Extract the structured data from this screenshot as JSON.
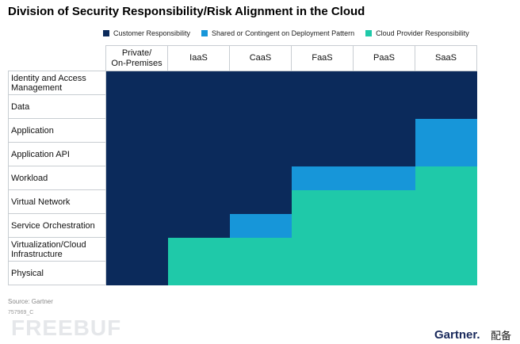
{
  "chart_data": {
    "type": "heatmap",
    "title": "Division of Security Responsibility/Risk Alignment in the Cloud",
    "legend": [
      {
        "key": "C",
        "label": "Customer Responsibility",
        "color": "#0b2a5b"
      },
      {
        "key": "S",
        "label": "Shared or Contingent on Deployment Pattern",
        "color": "#1796d9"
      },
      {
        "key": "P",
        "label": "Cloud Provider Responsibility",
        "color": "#1fc9a9"
      }
    ],
    "legend_placement": "top",
    "columns": [
      "Private/ On-Premises",
      "IaaS",
      "CaaS",
      "FaaS",
      "PaaS",
      "SaaS"
    ],
    "rows": [
      {
        "label": "Identity and Access Management",
        "cells": [
          "C",
          "C",
          "C",
          "C",
          "C",
          "C"
        ]
      },
      {
        "label": "Data",
        "cells": [
          "C",
          "C",
          "C",
          "C",
          "C",
          "C"
        ]
      },
      {
        "label": "Application",
        "cells": [
          "C",
          "C",
          "C",
          "C",
          "C",
          "S"
        ]
      },
      {
        "label": "Application API",
        "cells": [
          "C",
          "C",
          "C",
          "C",
          "C",
          "S"
        ]
      },
      {
        "label": "Workload",
        "cells": [
          "C",
          "C",
          "C",
          "S",
          "S",
          "P"
        ]
      },
      {
        "label": "Virtual Network",
        "cells": [
          "C",
          "C",
          "C",
          "P",
          "P",
          "P"
        ]
      },
      {
        "label": "Service Orchestration",
        "cells": [
          "C",
          "C",
          "S",
          "P",
          "P",
          "P"
        ]
      },
      {
        "label": "Virtualization/Cloud Infrastructure",
        "cells": [
          "C",
          "P",
          "P",
          "P",
          "P",
          "P"
        ]
      },
      {
        "label": "Physical",
        "cells": [
          "C",
          "P",
          "P",
          "P",
          "P",
          "P"
        ]
      }
    ]
  },
  "footer": {
    "source": "Source: Gartner",
    "code": "757969_C",
    "watermark": "FREEBUF",
    "brand": "Gartner.",
    "brand_suffix": "配备"
  }
}
